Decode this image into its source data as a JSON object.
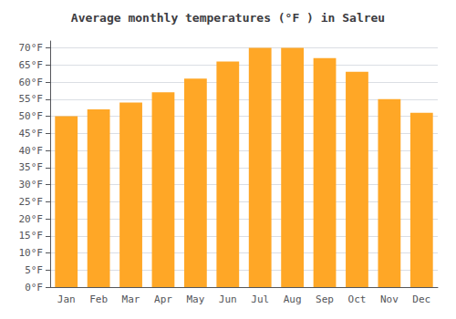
{
  "chart_data": {
    "type": "bar",
    "title": "Average monthly temperatures (°F ) in Salreu",
    "categories": [
      "Jan",
      "Feb",
      "Mar",
      "Apr",
      "May",
      "Jun",
      "Jul",
      "Aug",
      "Sep",
      "Oct",
      "Nov",
      "Dec"
    ],
    "values": [
      50,
      52,
      54,
      57,
      61,
      66,
      70,
      70,
      67,
      63,
      55,
      51
    ],
    "color": "#FFA726",
    "ylim": [
      0,
      72
    ],
    "yticks": [
      {
        "value": 0,
        "label": "0°F"
      },
      {
        "value": 5,
        "label": "5°F"
      },
      {
        "value": 10,
        "label": "10°F"
      },
      {
        "value": 15,
        "label": "15°F"
      },
      {
        "value": 20,
        "label": "20°F"
      },
      {
        "value": 25,
        "label": "25°F"
      },
      {
        "value": 30,
        "label": "30°F"
      },
      {
        "value": 35,
        "label": "35°F"
      },
      {
        "value": 40,
        "label": "40°F"
      },
      {
        "value": 45,
        "label": "45°F"
      },
      {
        "value": 50,
        "label": "50°F"
      },
      {
        "value": 55,
        "label": "55°F"
      },
      {
        "value": 60,
        "label": "60°F"
      },
      {
        "value": 65,
        "label": "65°F"
      },
      {
        "value": 70,
        "label": "70°F"
      }
    ],
    "grid": true
  }
}
